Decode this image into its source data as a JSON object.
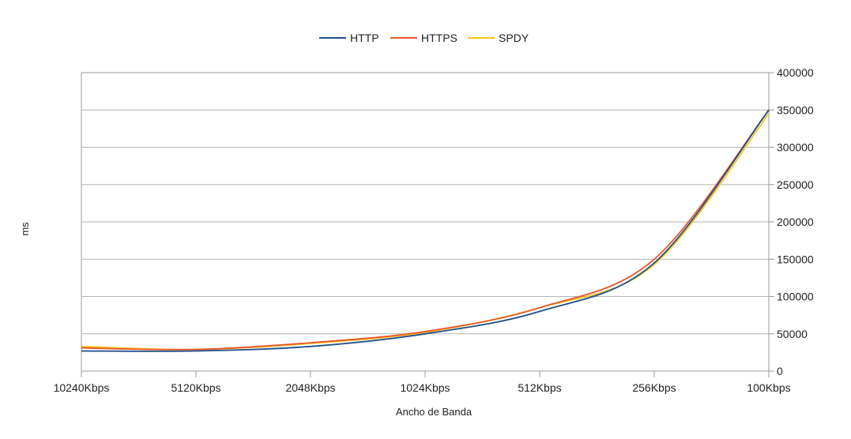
{
  "chart_data": {
    "type": "line",
    "title": "",
    "xlabel": "Ancho de Banda",
    "ylabel": "ms",
    "categories": [
      "10240Kbps",
      "5120Kbps",
      "2048Kbps",
      "1024Kbps",
      "512Kbps",
      "256Kbps",
      "100Kbps"
    ],
    "y_axis_position": "right",
    "ylim": [
      0,
      400000
    ],
    "yticks": [
      0,
      50000,
      100000,
      150000,
      200000,
      250000,
      300000,
      350000,
      400000
    ],
    "ytick_labels": [
      "0",
      "50000",
      "100000",
      "150000",
      "200000",
      "250000",
      "300000",
      "350000",
      "400000"
    ],
    "grid": true,
    "legend_position": "top",
    "series": [
      {
        "name": "HTTP",
        "color": "#1f4e8c",
        "values": [
          27000,
          27000,
          33000,
          50000,
          80000,
          145000,
          350000
        ]
      },
      {
        "name": "HTTPS",
        "color": "#e8552a",
        "values": [
          31000,
          29000,
          38000,
          53000,
          85000,
          150000,
          350000
        ]
      },
      {
        "name": "SPDY",
        "color": "#f5c518",
        "values": [
          33000,
          29000,
          37000,
          52000,
          85000,
          143000,
          345000
        ]
      }
    ]
  }
}
